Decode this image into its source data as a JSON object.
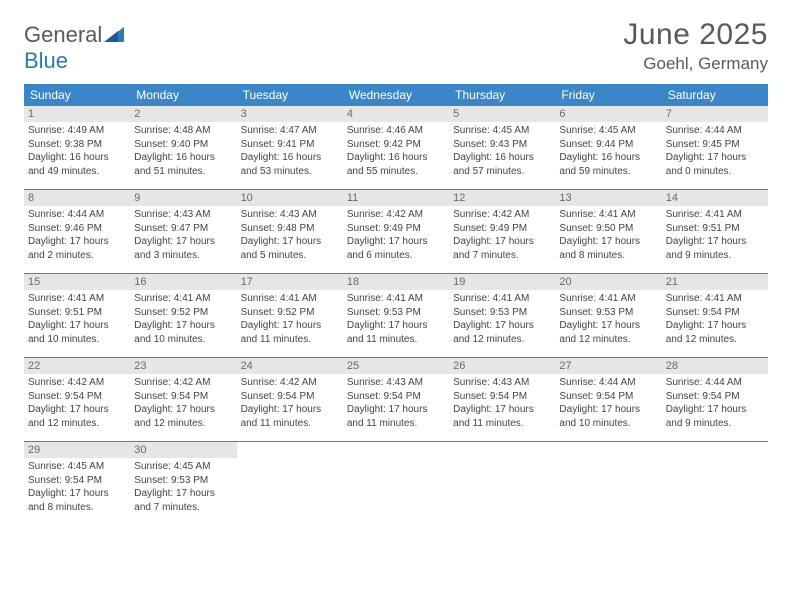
{
  "brand": {
    "text_top": "General",
    "text_bottom": "Blue",
    "shape_color": "#2f78b8"
  },
  "header": {
    "title": "June 2025",
    "location": "Goehl, Germany"
  },
  "colors": {
    "header_bar": "#3b86c6",
    "row_divider": "#3b86c6",
    "daynum_bg": "#e6e6e6",
    "daynum_text": "#6a6a6a",
    "body_text": "#444444",
    "page_bg": "#ffffff"
  },
  "weekdays": [
    "Sunday",
    "Monday",
    "Tuesday",
    "Wednesday",
    "Thursday",
    "Friday",
    "Saturday"
  ],
  "weeks": [
    [
      {
        "day": "1",
        "sunrise": "Sunrise: 4:49 AM",
        "sunset": "Sunset: 9:38 PM",
        "daylight": "Daylight: 16 hours and 49 minutes."
      },
      {
        "day": "2",
        "sunrise": "Sunrise: 4:48 AM",
        "sunset": "Sunset: 9:40 PM",
        "daylight": "Daylight: 16 hours and 51 minutes."
      },
      {
        "day": "3",
        "sunrise": "Sunrise: 4:47 AM",
        "sunset": "Sunset: 9:41 PM",
        "daylight": "Daylight: 16 hours and 53 minutes."
      },
      {
        "day": "4",
        "sunrise": "Sunrise: 4:46 AM",
        "sunset": "Sunset: 9:42 PM",
        "daylight": "Daylight: 16 hours and 55 minutes."
      },
      {
        "day": "5",
        "sunrise": "Sunrise: 4:45 AM",
        "sunset": "Sunset: 9:43 PM",
        "daylight": "Daylight: 16 hours and 57 minutes."
      },
      {
        "day": "6",
        "sunrise": "Sunrise: 4:45 AM",
        "sunset": "Sunset: 9:44 PM",
        "daylight": "Daylight: 16 hours and 59 minutes."
      },
      {
        "day": "7",
        "sunrise": "Sunrise: 4:44 AM",
        "sunset": "Sunset: 9:45 PM",
        "daylight": "Daylight: 17 hours and 0 minutes."
      }
    ],
    [
      {
        "day": "8",
        "sunrise": "Sunrise: 4:44 AM",
        "sunset": "Sunset: 9:46 PM",
        "daylight": "Daylight: 17 hours and 2 minutes."
      },
      {
        "day": "9",
        "sunrise": "Sunrise: 4:43 AM",
        "sunset": "Sunset: 9:47 PM",
        "daylight": "Daylight: 17 hours and 3 minutes."
      },
      {
        "day": "10",
        "sunrise": "Sunrise: 4:43 AM",
        "sunset": "Sunset: 9:48 PM",
        "daylight": "Daylight: 17 hours and 5 minutes."
      },
      {
        "day": "11",
        "sunrise": "Sunrise: 4:42 AM",
        "sunset": "Sunset: 9:49 PM",
        "daylight": "Daylight: 17 hours and 6 minutes."
      },
      {
        "day": "12",
        "sunrise": "Sunrise: 4:42 AM",
        "sunset": "Sunset: 9:49 PM",
        "daylight": "Daylight: 17 hours and 7 minutes."
      },
      {
        "day": "13",
        "sunrise": "Sunrise: 4:41 AM",
        "sunset": "Sunset: 9:50 PM",
        "daylight": "Daylight: 17 hours and 8 minutes."
      },
      {
        "day": "14",
        "sunrise": "Sunrise: 4:41 AM",
        "sunset": "Sunset: 9:51 PM",
        "daylight": "Daylight: 17 hours and 9 minutes."
      }
    ],
    [
      {
        "day": "15",
        "sunrise": "Sunrise: 4:41 AM",
        "sunset": "Sunset: 9:51 PM",
        "daylight": "Daylight: 17 hours and 10 minutes."
      },
      {
        "day": "16",
        "sunrise": "Sunrise: 4:41 AM",
        "sunset": "Sunset: 9:52 PM",
        "daylight": "Daylight: 17 hours and 10 minutes."
      },
      {
        "day": "17",
        "sunrise": "Sunrise: 4:41 AM",
        "sunset": "Sunset: 9:52 PM",
        "daylight": "Daylight: 17 hours and 11 minutes."
      },
      {
        "day": "18",
        "sunrise": "Sunrise: 4:41 AM",
        "sunset": "Sunset: 9:53 PM",
        "daylight": "Daylight: 17 hours and 11 minutes."
      },
      {
        "day": "19",
        "sunrise": "Sunrise: 4:41 AM",
        "sunset": "Sunset: 9:53 PM",
        "daylight": "Daylight: 17 hours and 12 minutes."
      },
      {
        "day": "20",
        "sunrise": "Sunrise: 4:41 AM",
        "sunset": "Sunset: 9:53 PM",
        "daylight": "Daylight: 17 hours and 12 minutes."
      },
      {
        "day": "21",
        "sunrise": "Sunrise: 4:41 AM",
        "sunset": "Sunset: 9:54 PM",
        "daylight": "Daylight: 17 hours and 12 minutes."
      }
    ],
    [
      {
        "day": "22",
        "sunrise": "Sunrise: 4:42 AM",
        "sunset": "Sunset: 9:54 PM",
        "daylight": "Daylight: 17 hours and 12 minutes."
      },
      {
        "day": "23",
        "sunrise": "Sunrise: 4:42 AM",
        "sunset": "Sunset: 9:54 PM",
        "daylight": "Daylight: 17 hours and 12 minutes."
      },
      {
        "day": "24",
        "sunrise": "Sunrise: 4:42 AM",
        "sunset": "Sunset: 9:54 PM",
        "daylight": "Daylight: 17 hours and 11 minutes."
      },
      {
        "day": "25",
        "sunrise": "Sunrise: 4:43 AM",
        "sunset": "Sunset: 9:54 PM",
        "daylight": "Daylight: 17 hours and 11 minutes."
      },
      {
        "day": "26",
        "sunrise": "Sunrise: 4:43 AM",
        "sunset": "Sunset: 9:54 PM",
        "daylight": "Daylight: 17 hours and 11 minutes."
      },
      {
        "day": "27",
        "sunrise": "Sunrise: 4:44 AM",
        "sunset": "Sunset: 9:54 PM",
        "daylight": "Daylight: 17 hours and 10 minutes."
      },
      {
        "day": "28",
        "sunrise": "Sunrise: 4:44 AM",
        "sunset": "Sunset: 9:54 PM",
        "daylight": "Daylight: 17 hours and 9 minutes."
      }
    ],
    [
      {
        "day": "29",
        "sunrise": "Sunrise: 4:45 AM",
        "sunset": "Sunset: 9:54 PM",
        "daylight": "Daylight: 17 hours and 8 minutes."
      },
      {
        "day": "30",
        "sunrise": "Sunrise: 4:45 AM",
        "sunset": "Sunset: 9:53 PM",
        "daylight": "Daylight: 17 hours and 7 minutes."
      },
      null,
      null,
      null,
      null,
      null
    ]
  ]
}
